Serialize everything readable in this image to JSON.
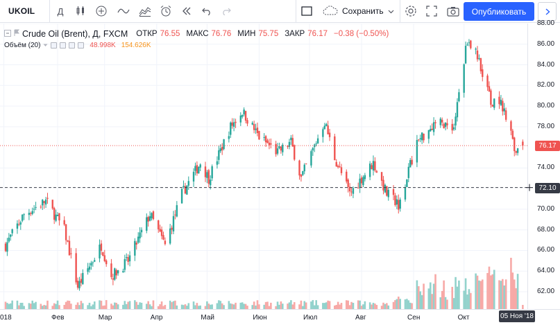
{
  "toolbar": {
    "symbol": "UKOIL",
    "interval": "Д",
    "save_label": "Сохранить",
    "publish_label": "Опубликовать",
    "icons": [
      "candles-icon",
      "add-compare-icon",
      "indicators-icon",
      "templates-icon",
      "alert-icon",
      "replay-icon",
      "undo-icon",
      "redo-icon",
      "layout-icon",
      "cloud-icon",
      "settings-icon",
      "fullscreen-icon",
      "snapshot-icon",
      "play-icon"
    ]
  },
  "legend": {
    "title": "Crude Oil (Brent), Д, FXCM",
    "open_label": "ОТКР",
    "open_value": "76.55",
    "high_label": "МАКС",
    "high_value": "76.76",
    "low_label": "МИН",
    "low_value": "75.75",
    "close_label": "ЗАКР",
    "close_value": "76.17",
    "change": "−0.38 (−0.50%)",
    "volume_label": "Объём (20)",
    "volume_value1": "48.998K",
    "volume_value2": "154.626K"
  },
  "price_axis": {
    "labels": [
      "88.00",
      "86.00",
      "84.00",
      "82.00",
      "80.00",
      "78.00",
      "74.00",
      "70.00",
      "68.00",
      "66.00",
      "64.00",
      "62.00"
    ],
    "last_price": "76.17",
    "cursor_price": "72.10"
  },
  "time_axis": {
    "labels": [
      "018",
      "Фев",
      "Мар",
      "Апр",
      "Май",
      "Июн",
      "Июл",
      "Авг",
      "Сен",
      "Окт"
    ],
    "cursor_date": "05 Ноя '18"
  },
  "colors": {
    "up": "#26a69a",
    "down": "#ef5350",
    "accent": "#2962ff",
    "crosshair": "#363a45"
  },
  "chart_data": {
    "type": "candlestick",
    "symbol": "Crude Oil (Brent)",
    "interval": "Daily",
    "ylim": [
      61,
      88.5
    ],
    "waypoints": [
      {
        "date": "2018-01-01",
        "price": 66.5
      },
      {
        "date": "2018-01-12",
        "price": 69.5
      },
      {
        "date": "2018-01-25",
        "price": 70.8
      },
      {
        "date": "2018-02-05",
        "price": 68.0
      },
      {
        "date": "2018-02-13",
        "price": 62.5
      },
      {
        "date": "2018-02-27",
        "price": 66.5
      },
      {
        "date": "2018-03-05",
        "price": 63.5
      },
      {
        "date": "2018-03-15",
        "price": 65.0
      },
      {
        "date": "2018-03-28",
        "price": 69.5
      },
      {
        "date": "2018-04-06",
        "price": 66.5
      },
      {
        "date": "2018-04-16",
        "price": 71.5
      },
      {
        "date": "2018-04-27",
        "price": 74.5
      },
      {
        "date": "2018-05-02",
        "price": 73.0
      },
      {
        "date": "2018-05-15",
        "price": 78.0
      },
      {
        "date": "2018-05-22",
        "price": 79.5
      },
      {
        "date": "2018-06-01",
        "price": 77.0
      },
      {
        "date": "2018-06-12",
        "price": 75.5
      },
      {
        "date": "2018-06-20",
        "price": 76.5
      },
      {
        "date": "2018-06-26",
        "price": 73.0
      },
      {
        "date": "2018-07-10",
        "price": 78.5
      },
      {
        "date": "2018-07-16",
        "price": 75.0
      },
      {
        "date": "2018-07-25",
        "price": 71.5
      },
      {
        "date": "2018-08-08",
        "price": 74.5
      },
      {
        "date": "2018-08-16",
        "price": 71.5
      },
      {
        "date": "2018-08-23",
        "price": 70.5
      },
      {
        "date": "2018-09-03",
        "price": 76.5
      },
      {
        "date": "2018-09-14",
        "price": 78.5
      },
      {
        "date": "2018-09-25",
        "price": 78.0
      },
      {
        "date": "2018-10-03",
        "price": 86.5
      },
      {
        "date": "2018-10-10",
        "price": 84.5
      },
      {
        "date": "2018-10-17",
        "price": 80.5
      },
      {
        "date": "2018-10-24",
        "price": 80.0
      },
      {
        "date": "2018-11-01",
        "price": 75.5
      },
      {
        "date": "2018-11-05",
        "price": 76.17
      }
    ],
    "last_price": 76.17,
    "crosshair_price": 72.1
  }
}
